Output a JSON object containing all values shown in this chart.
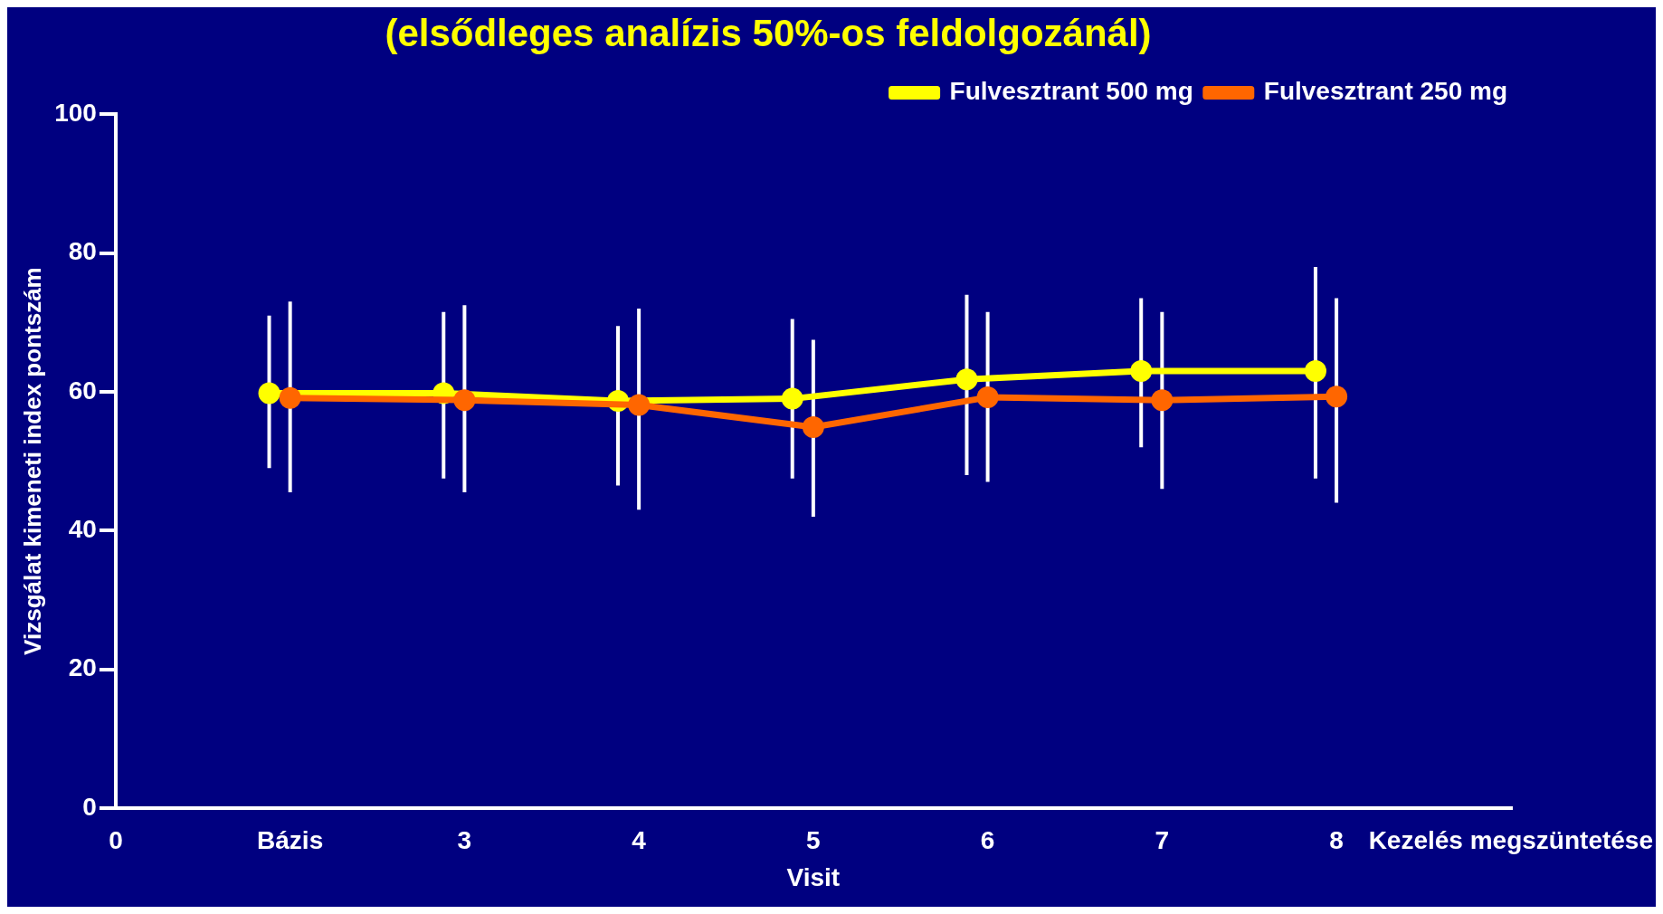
{
  "chart_data": {
    "type": "line",
    "title": "(elsődleges analízis 50%-os feldolgozánál)",
    "xlabel": "Visit",
    "ylabel": "Vizsgálat kimeneti index pontszám",
    "categories": [
      "0",
      "Bázis",
      "3",
      "4",
      "5",
      "6",
      "7",
      "8",
      "Kezelés megszüntetése"
    ],
    "ylim": [
      0,
      100
    ],
    "yticks": [
      0,
      20,
      40,
      60,
      80,
      100
    ],
    "grid": false,
    "legend": "top right",
    "marker": "circle",
    "line_style": "solid",
    "series": [
      {
        "name": "Fulvesztrant 500 mg",
        "color": "#ffff00",
        "values": [
          null,
          59.8,
          59.8,
          58.7,
          59,
          61.8,
          63,
          63,
          null
        ],
        "errors": [
          null,
          [
            49,
            71
          ],
          [
            47.5,
            71.5
          ],
          [
            46.5,
            69.5
          ],
          [
            47.5,
            70.5
          ],
          [
            48,
            74
          ],
          [
            52,
            73.5
          ],
          [
            47.5,
            78
          ],
          null
        ]
      },
      {
        "name": "Fulvesztrant 250 mg",
        "color": "#ff6600",
        "values": [
          null,
          59.1,
          58.8,
          58.1,
          54.9,
          59.2,
          58.8,
          59.3,
          null
        ],
        "errors": [
          null,
          [
            45.5,
            73
          ],
          [
            45.5,
            72.5
          ],
          [
            43,
            72
          ],
          [
            42,
            67.5
          ],
          [
            47,
            71.5
          ],
          [
            46,
            71.5
          ],
          [
            44,
            73.5
          ],
          null
        ]
      }
    ]
  }
}
